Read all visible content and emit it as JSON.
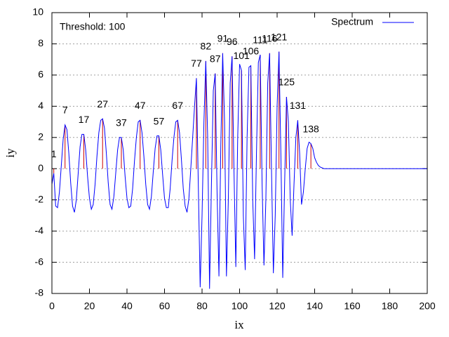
{
  "chart_data": {
    "type": "line",
    "annotation": "Threshold: 100",
    "xlabel": "ix",
    "ylabel": "iy",
    "xlim": [
      0,
      200
    ],
    "ylim": [
      -8,
      10
    ],
    "xticks": [
      0,
      20,
      40,
      60,
      80,
      100,
      120,
      140,
      160,
      180,
      200
    ],
    "yticks": [
      -8,
      -6,
      -4,
      -2,
      0,
      2,
      4,
      6,
      8,
      10
    ],
    "grid": true,
    "legend": "top-right",
    "series": [
      {
        "name": "Spectrum",
        "color": "#0000ff",
        "x": [
          0,
          1,
          2,
          3,
          4,
          5,
          6,
          7,
          8,
          9,
          10,
          11,
          12,
          13,
          14,
          15,
          16,
          17,
          18,
          19,
          20,
          21,
          22,
          23,
          24,
          25,
          26,
          27,
          28,
          29,
          30,
          31,
          32,
          33,
          34,
          35,
          36,
          37,
          38,
          39,
          40,
          41,
          42,
          43,
          44,
          45,
          46,
          47,
          48,
          49,
          50,
          51,
          52,
          53,
          54,
          55,
          56,
          57,
          58,
          59,
          60,
          61,
          62,
          63,
          64,
          65,
          66,
          67,
          68,
          69,
          70,
          71,
          72,
          73,
          74,
          75,
          76,
          77,
          78,
          79,
          80,
          81,
          82,
          83,
          84,
          85,
          86,
          87,
          88,
          89,
          90,
          91,
          92,
          93,
          94,
          95,
          96,
          97,
          98,
          99,
          100,
          101,
          102,
          103,
          104,
          105,
          106,
          107,
          108,
          109,
          110,
          111,
          112,
          113,
          114,
          115,
          116,
          117,
          118,
          119,
          120,
          121,
          122,
          123,
          124,
          125,
          126,
          127,
          128,
          129,
          130,
          131,
          132,
          133,
          134,
          135,
          136,
          137,
          138,
          139,
          140,
          141,
          142,
          143,
          144,
          145,
          200
        ],
        "values": [
          -1.0,
          -0.3,
          -2.4,
          -2.5,
          -1.5,
          0.2,
          1.9,
          2.8,
          2.5,
          1.0,
          -0.9,
          -2.4,
          -2.8,
          -2.0,
          -0.3,
          1.4,
          2.2,
          2.2,
          1.2,
          -0.5,
          -1.9,
          -2.6,
          -2.3,
          -1.0,
          0.8,
          2.3,
          3.1,
          3.2,
          2.6,
          1.0,
          -0.9,
          -2.3,
          -2.6,
          -1.8,
          -0.3,
          1.2,
          2.0,
          2.0,
          1.2,
          -0.5,
          -1.9,
          -2.5,
          -2.4,
          -1.3,
          0.5,
          2.0,
          3.0,
          3.1,
          2.3,
          0.8,
          -1.0,
          -2.3,
          -2.6,
          -1.8,
          -0.2,
          1.3,
          2.1,
          2.1,
          1.2,
          -0.4,
          -1.9,
          -2.5,
          -2.5,
          -1.3,
          0.5,
          2.0,
          3.0,
          3.1,
          2.3,
          0.6,
          -1.3,
          -2.4,
          -2.8,
          -1.9,
          0.0,
          2.0,
          4.0,
          5.8,
          -1.0,
          -7.6,
          -3.0,
          3.0,
          6.9,
          2.0,
          -7.7,
          -1.0,
          5.0,
          6.1,
          -1.5,
          -6.9,
          1.5,
          7.4,
          3.0,
          -6.9,
          -2.0,
          5.5,
          7.2,
          0.0,
          -6.3,
          2.0,
          6.7,
          6.3,
          -3.0,
          -6.5,
          2.0,
          6.5,
          6.6,
          -2.0,
          -5.8,
          1.0,
          6.8,
          7.3,
          -1.0,
          -6.2,
          -2.0,
          5.5,
          7.4,
          0.0,
          -6.7,
          -3.0,
          4.0,
          7.5,
          1.0,
          -7.0,
          -1.0,
          4.6,
          3.0,
          -2.0,
          -4.3,
          -1.0,
          2.0,
          3.1,
          1.0,
          -2.3,
          -1.5,
          0.0,
          1.3,
          1.7,
          1.6,
          1.3,
          0.7,
          0.4,
          0.2,
          0.1,
          0.05,
          0.0,
          0.0
        ]
      }
    ],
    "peaks": {
      "color": "#cc0000",
      "x": [
        1,
        7,
        17,
        27,
        37,
        47,
        57,
        67,
        77,
        82,
        87,
        91,
        96,
        101,
        106,
        111,
        116,
        121,
        125,
        131,
        138
      ],
      "values": [
        -0.3,
        2.8,
        2.2,
        3.2,
        2.0,
        3.1,
        2.1,
        3.1,
        5.8,
        6.9,
        6.1,
        7.4,
        7.2,
        6.3,
        6.6,
        7.3,
        7.4,
        7.5,
        4.6,
        3.1,
        1.6
      ]
    }
  }
}
